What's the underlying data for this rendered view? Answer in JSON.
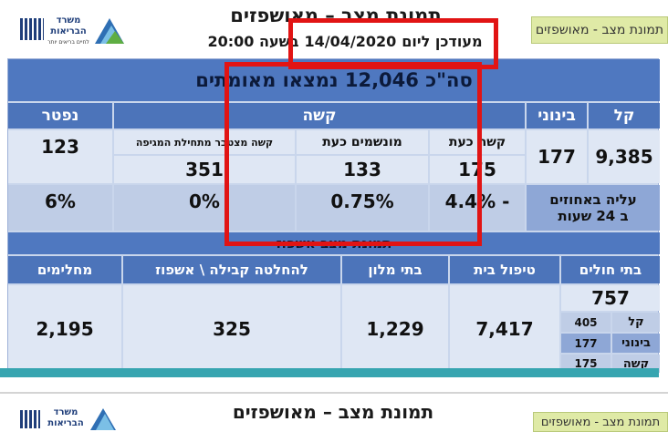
{
  "slide_top": {
    "title": "תמונת מצב – מאושפזים",
    "updated_prefix": "מעודכן ליום",
    "updated_date": "14/04/2020",
    "updated_time": "בשעה 20:00",
    "tag": "תמונת מצב - מאושפזים",
    "logo_text_1": "משרד",
    "logo_text_2": "הבריאות",
    "logo_text_3": "לחיים בריאים יותר"
  },
  "summary": {
    "text": "סה\"כ 12,046 נמצאו מאומתים"
  },
  "table1": {
    "headers": {
      "mild": "קל",
      "moderate": "בינוני",
      "severe": "קשה",
      "deceased": "נפטר"
    },
    "subheaders": {
      "severe_now": "קשה כעת",
      "ventilated_now": "מונשמים כעת",
      "severe_cumulative": "קשה מצטבר מתחילת המגיפה"
    },
    "values": {
      "mild": "9,385",
      "moderate": "177",
      "severe_now": "175",
      "ventilated_now": "133",
      "severe_cumulative": "351",
      "deceased": "123"
    },
    "rise_label_1": "עליה באחוזים",
    "rise_label_2": "ב 24 שעות",
    "rise_values": {
      "severe_now": "- 4.4%",
      "ventilated_now": "0.75%",
      "severe_cumulative": "0%",
      "deceased": "6%"
    }
  },
  "section2": {
    "title": "תמונת מצב אשפוז"
  },
  "table2": {
    "headers": {
      "hospitals": "בתי חולים",
      "home_care": "טיפול בית",
      "hotels": "בתי מלון",
      "undecided": "להחלטה קבילה \\ אשפוז",
      "recovered": "מחלימים"
    },
    "values": {
      "hospitals": "757",
      "home_care": "7,417",
      "hotels": "1,229",
      "undecided": "325",
      "recovered": "2,195"
    },
    "breakdown": [
      {
        "label": "קל",
        "value": "405"
      },
      {
        "label": "בינוני",
        "value": "177"
      },
      {
        "label": "קשה",
        "value": "175"
      }
    ]
  },
  "slide_bottom": {
    "title": "תמונת מצב – מאושפזים",
    "tag": "תמונת מצב - מאושפזים",
    "logo_text_1": "משרד",
    "logo_text_2": "הבריאות"
  },
  "colors": {
    "header_blue": "#4c74ba",
    "cell_light": "#dfe7f4",
    "highlight_red": "#e11414",
    "tag_green": "#dfeaa6"
  }
}
